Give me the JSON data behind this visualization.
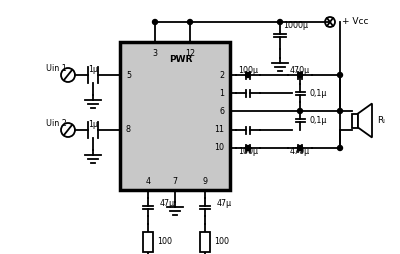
{
  "bg_color": "#ffffff",
  "ic_color": "#c8c8c8",
  "ic_border": "#000000",
  "line_color": "#000000",
  "text_color": "#000000",
  "labels": {
    "pin3": "3",
    "pin12": "12",
    "pin2": "2",
    "pin1": "1",
    "pin6": "6",
    "pin11": "11",
    "pin10": "10",
    "pin4": "4",
    "pin7": "7",
    "pin9": "9",
    "pin5": "5",
    "pin8": "8",
    "PWR": "PWR",
    "Uin1": "Uin 1",
    "Uin2": "Uin 2",
    "cap1000": "1000μ",
    "cap100_top": "100μ",
    "cap470_top": "470μ",
    "cap01_top": "0,1μ",
    "cap01_bot": "0,1μ",
    "cap100_bot": "100μ",
    "cap470_bot": "470μ",
    "cap47_left": "47μ",
    "cap47_right": "47μ",
    "res100_left": "100",
    "res100_right": "100",
    "cap1u_1": "1μ",
    "cap1u_2": "1μ",
    "Vcc": "+ Vcc",
    "RL": "Rₗ"
  }
}
